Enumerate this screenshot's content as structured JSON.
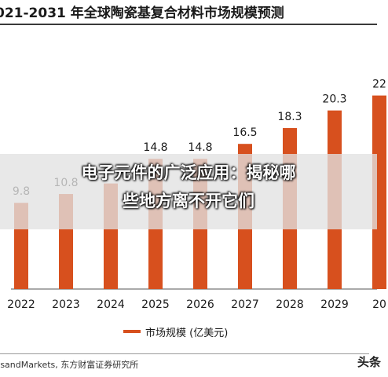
{
  "header": {
    "title": "021-2031 年全球陶瓷基复合材料市场规模预测"
  },
  "chart_data": {
    "type": "bar",
    "categories": [
      "2022",
      "2023",
      "2024",
      "2025",
      "2026",
      "2027",
      "2028",
      "2029",
      "20"
    ],
    "series": [
      {
        "name": "市场规模 (亿美元)",
        "values": [
          9.8,
          10.8,
          12.0,
          14.8,
          14.8,
          16.5,
          18.3,
          20.3,
          22
        ],
        "labels": [
          "9.8",
          "10.8",
          "",
          "14.8",
          "14.8",
          "16.5",
          "18.3",
          "20.3",
          "22"
        ]
      }
    ],
    "bar_color": "#d7501e"
  },
  "legend": {
    "label": "市场规模  (亿美元)"
  },
  "footer": {
    "source": "tsandMarkets, 东方财富证券研究所",
    "watermark": "头条"
  },
  "overlay": {
    "line1": "电子元件的广泛应用：揭秘哪",
    "line2": "些地方离不开它们"
  }
}
